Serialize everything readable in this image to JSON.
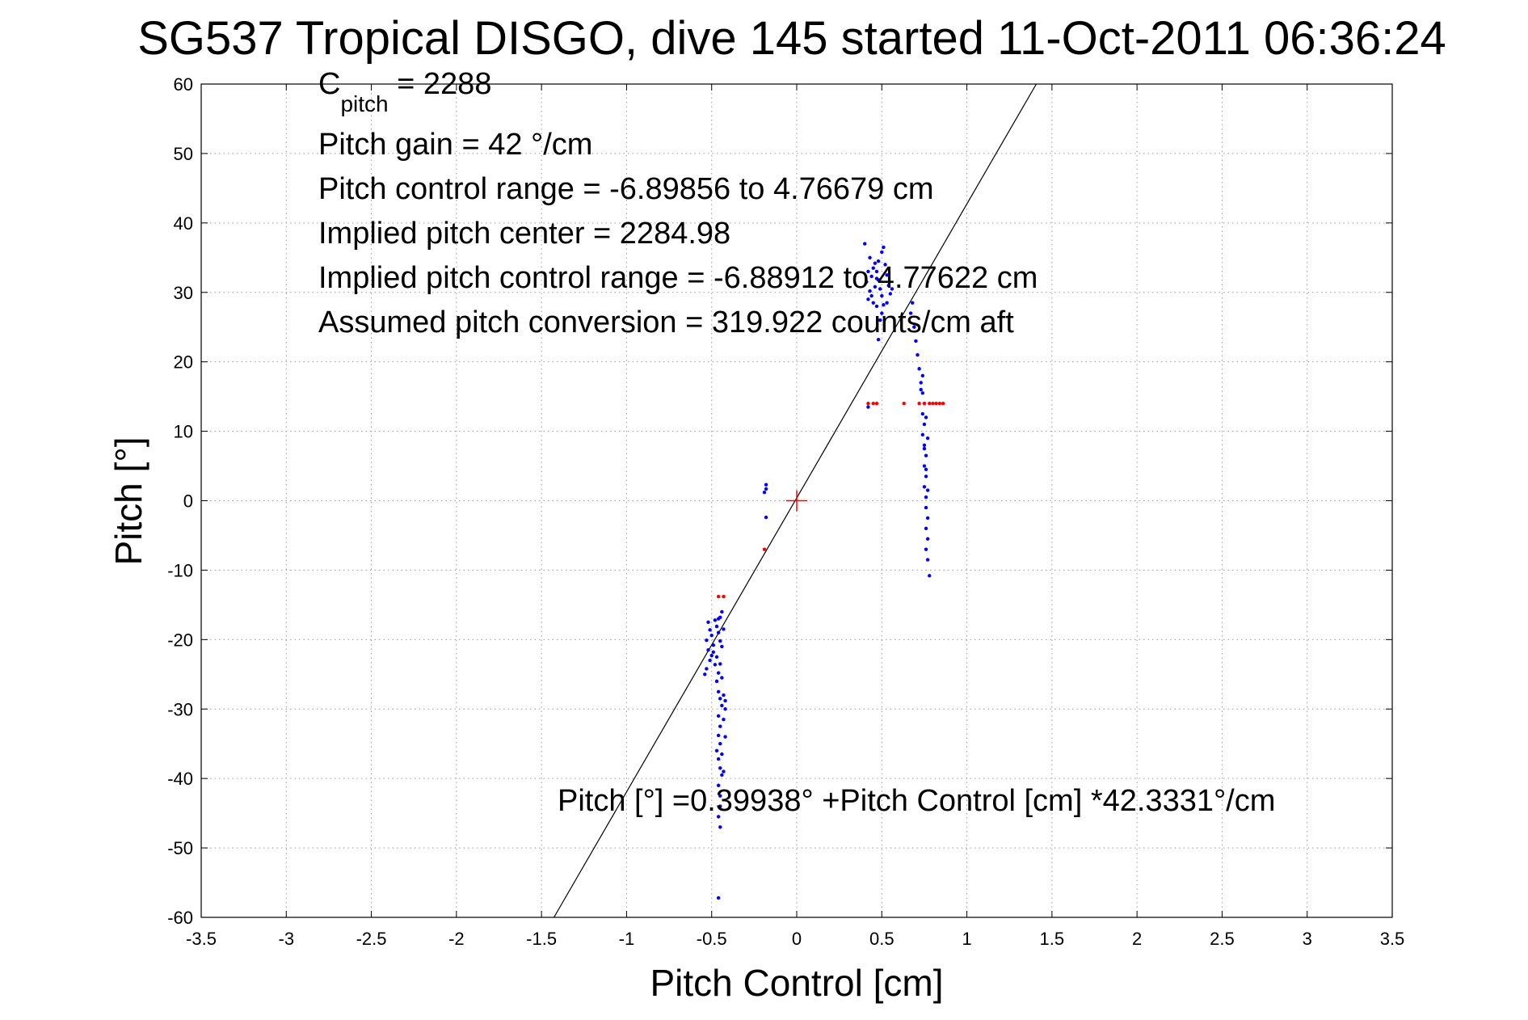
{
  "chart_data": {
    "type": "scatter",
    "title": "SG537 Tropical DISGO, dive 145 started 11-Oct-2011 06:36:24",
    "xlabel": "Pitch Control [cm]",
    "ylabel": "Pitch [°]",
    "xlim": [
      -3.5,
      3.5
    ],
    "ylim": [
      -60,
      60
    ],
    "xticks": [
      -3.5,
      -3,
      -2.5,
      -2,
      -1.5,
      -1,
      -0.5,
      0,
      0.5,
      1,
      1.5,
      2,
      2.5,
      3,
      3.5
    ],
    "xtick_labels": [
      "-3.5",
      "-3",
      "-2.5",
      "-2",
      "-1.5",
      "-1",
      "-0.5",
      "0",
      "0.5",
      "1",
      "1.5",
      "2",
      "2.5",
      "3",
      "3.5"
    ],
    "yticks": [
      -60,
      -50,
      -40,
      -30,
      -20,
      -10,
      0,
      10,
      20,
      30,
      40,
      50,
      60
    ],
    "ytick_labels": [
      "-60",
      "-50",
      "-40",
      "-30",
      "-20",
      "-10",
      "0",
      "10",
      "20",
      "30",
      "40",
      "50",
      "60"
    ],
    "grid": true,
    "annotations": {
      "cpitch_main": "C",
      "cpitch_sub": "pitch",
      "cpitch_value": " = 2288",
      "pitch_gain": "Pitch gain = 42 °/cm",
      "pitch_control_range": "Pitch control range = -6.89856 to 4.76679 cm",
      "implied_pitch_center": "Implied pitch center = 2284.98",
      "implied_pitch_control_range": "Implied pitch control range = -6.88912 to 4.77622 cm",
      "assumed_pitch_conversion": "Assumed pitch conversion = 319.922 counts/cm aft",
      "fit_equation": "Pitch [°] =0.39938° +Pitch Control [cm] *42.3331°/cm"
    },
    "fit_line": {
      "intercept": 0.39938,
      "slope": 42.3331
    },
    "center_marker": {
      "x": 0,
      "y": 0
    },
    "series": [
      {
        "color": "#0000ff",
        "points": [
          [
            -0.52,
            -17.5
          ],
          [
            -0.51,
            -18.6
          ],
          [
            -0.5,
            -19.4
          ],
          [
            -0.53,
            -20.1
          ],
          [
            -0.49,
            -20.8
          ],
          [
            -0.52,
            -21.5
          ],
          [
            -0.5,
            -22.3
          ],
          [
            -0.51,
            -23.0
          ],
          [
            -0.53,
            -24.2
          ],
          [
            -0.54,
            -25.0
          ],
          [
            -0.48,
            -17.2
          ],
          [
            -0.47,
            -18.1
          ],
          [
            -0.46,
            -19.0
          ],
          [
            -0.45,
            -20.2
          ],
          [
            -0.44,
            -21.0
          ],
          [
            -0.43,
            -18.5
          ],
          [
            -0.45,
            -16.8
          ],
          [
            -0.44,
            -16.0
          ],
          [
            -0.46,
            -17.0
          ],
          [
            -0.49,
            -21.8
          ],
          [
            -0.47,
            -22.5
          ],
          [
            -0.48,
            -23.6
          ],
          [
            -0.46,
            -24.8
          ],
          [
            -0.47,
            -26.0
          ],
          [
            -0.46,
            -27.5
          ],
          [
            -0.45,
            -28.5
          ],
          [
            -0.44,
            -29.5
          ],
          [
            -0.43,
            -28.0
          ],
          [
            -0.42,
            -30.0
          ],
          [
            -0.46,
            -31.0
          ],
          [
            -0.45,
            -32.5
          ],
          [
            -0.46,
            -33.8
          ],
          [
            -0.45,
            -35.0
          ],
          [
            -0.47,
            -36.0
          ],
          [
            -0.46,
            -37.2
          ],
          [
            -0.45,
            -38.5
          ],
          [
            -0.44,
            -39.5
          ],
          [
            -0.46,
            -41.0
          ],
          [
            -0.45,
            -42.5
          ],
          [
            -0.45,
            -44.0
          ],
          [
            -0.46,
            -45.5
          ],
          [
            -0.45,
            -47.0
          ],
          [
            -0.44,
            -36.5
          ],
          [
            -0.43,
            -39.0
          ],
          [
            -0.42,
            -34.0
          ],
          [
            -0.43,
            -31.5
          ],
          [
            -0.42,
            -28.8
          ],
          [
            -0.44,
            -25.5
          ],
          [
            -0.45,
            -23.5
          ],
          [
            -0.46,
            -57.2
          ],
          [
            -0.18,
            2.3
          ],
          [
            -0.18,
            1.7
          ],
          [
            -0.19,
            1.2
          ],
          [
            -0.18,
            -2.4
          ],
          [
            0.42,
            13.5
          ],
          [
            0.41,
            31.5
          ],
          [
            0.43,
            30.2
          ],
          [
            0.42,
            29.0
          ],
          [
            0.44,
            32.3
          ],
          [
            0.45,
            33.5
          ],
          [
            0.43,
            35.0
          ],
          [
            0.46,
            34.2
          ],
          [
            0.47,
            33.0
          ],
          [
            0.48,
            31.8
          ],
          [
            0.49,
            30.5
          ],
          [
            0.5,
            29.5
          ],
          [
            0.51,
            28.2
          ],
          [
            0.5,
            27.0
          ],
          [
            0.49,
            26.0
          ],
          [
            0.45,
            28.5
          ],
          [
            0.46,
            30.8
          ],
          [
            0.47,
            32.0
          ],
          [
            0.48,
            34.5
          ],
          [
            0.5,
            35.8
          ],
          [
            0.51,
            36.5
          ],
          [
            0.52,
            34.0
          ],
          [
            0.53,
            32.5
          ],
          [
            0.54,
            31.0
          ],
          [
            0.55,
            29.8
          ],
          [
            0.53,
            28.5
          ],
          [
            0.56,
            30.5
          ],
          [
            0.44,
            29.5
          ],
          [
            0.42,
            33.0
          ],
          [
            0.4,
            37.0
          ],
          [
            0.47,
            28.0
          ],
          [
            0.48,
            23.2
          ],
          [
            0.68,
            28.5
          ],
          [
            0.67,
            27.0
          ],
          [
            0.69,
            25.0
          ],
          [
            0.7,
            23.0
          ],
          [
            0.71,
            21.0
          ],
          [
            0.72,
            19.0
          ],
          [
            0.73,
            17.0
          ],
          [
            0.74,
            15.5
          ],
          [
            0.75,
            14.0
          ],
          [
            0.74,
            12.5
          ],
          [
            0.75,
            11.0
          ],
          [
            0.74,
            9.5
          ],
          [
            0.75,
            8.0
          ],
          [
            0.76,
            6.5
          ],
          [
            0.75,
            5.0
          ],
          [
            0.76,
            3.5
          ],
          [
            0.75,
            2.0
          ],
          [
            0.76,
            0.5
          ],
          [
            0.76,
            -1.0
          ],
          [
            0.77,
            -2.5
          ],
          [
            0.76,
            -4.0
          ],
          [
            0.77,
            -5.5
          ],
          [
            0.76,
            -7.0
          ],
          [
            0.77,
            -8.5
          ],
          [
            0.78,
            -10.8
          ],
          [
            0.73,
            16.0
          ],
          [
            0.74,
            18.0
          ],
          [
            0.76,
            12.0
          ],
          [
            0.77,
            9.0
          ],
          [
            0.75,
            7.5
          ],
          [
            0.76,
            4.5
          ],
          [
            0.77,
            1.5
          ]
        ]
      },
      {
        "color": "#ff0000",
        "points": [
          [
            -0.46,
            -13.8
          ],
          [
            -0.43,
            -13.8
          ],
          [
            -0.19,
            -7.0
          ],
          [
            0.42,
            14.0
          ],
          [
            0.45,
            14.0
          ],
          [
            0.47,
            14.0
          ],
          [
            0.63,
            14.0
          ],
          [
            0.72,
            14.0
          ],
          [
            0.75,
            14.0
          ],
          [
            0.78,
            14.0
          ],
          [
            0.8,
            14.0
          ],
          [
            0.82,
            14.0
          ],
          [
            0.84,
            14.0
          ],
          [
            0.86,
            14.0
          ]
        ]
      }
    ]
  }
}
